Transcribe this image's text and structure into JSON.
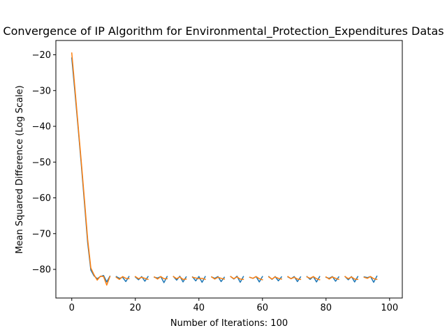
{
  "chart_data": {
    "type": "line",
    "title": "Convergence of IP Algorithm for Environmental_Protection_Expenditures Datas",
    "xlabel": "Number of Iterations: 100",
    "ylabel": "Mean Squared Difference (Log Scale)",
    "xlim": [
      -5,
      104
    ],
    "ylim": [
      -88,
      -16
    ],
    "xticks": [
      0,
      20,
      40,
      60,
      80,
      100
    ],
    "yticks": [
      -20,
      -30,
      -40,
      -50,
      -60,
      -70,
      -80
    ],
    "grid": false,
    "series": [
      {
        "color": "#1f77b4",
        "values": [
          -20.9,
          -30.5,
          -40.4,
          -50.7,
          -61.5,
          -72.5,
          -80.2,
          -81.8,
          -82.6,
          -82.0,
          -81.7,
          -83.5,
          -81.9,
          null,
          -82.0,
          -82.5,
          -82.2,
          -83.4,
          -82.0,
          null,
          -82.1,
          -82.9,
          -82.0,
          -83.3,
          -82.0,
          null,
          -82.2,
          -82.4,
          -82.0,
          -83.7,
          -82.0,
          null,
          -82.0,
          -83.0,
          -81.9,
          -83.5,
          -82.1,
          null,
          -82.1,
          -83.2,
          -82.0,
          -83.6,
          -82.0,
          null,
          -82.1,
          -82.5,
          -82.0,
          -83.4,
          -82.2,
          null,
          -82.0,
          -82.7,
          -81.9,
          -83.6,
          -82.0,
          null,
          -82.2,
          -82.5,
          -82.0,
          -83.5,
          -82.0,
          null,
          -82.0,
          -82.8,
          -82.0,
          -83.2,
          -82.1,
          null,
          -82.1,
          -82.6,
          -82.0,
          -83.4,
          -82.1,
          null,
          -82.0,
          -82.8,
          -82.0,
          -83.5,
          -82.0,
          null,
          -82.2,
          -82.5,
          -82.0,
          -83.3,
          -82.1,
          null,
          -82.0,
          -82.9,
          -82.0,
          -83.5,
          -82.0,
          null,
          -82.1,
          -82.3,
          -82.0,
          -83.6,
          -81.9
        ]
      },
      {
        "color": "#ff7f0e",
        "values": [
          -19.5,
          -29.5,
          -39.8,
          -50.0,
          -60.6,
          -71.6,
          -79.6,
          -81.5,
          -83.0,
          -81.9,
          -82.0,
          -84.4,
          -82.0,
          null,
          -82.2,
          -82.8,
          -82.0,
          -82.5,
          -82.6,
          null,
          -82.0,
          -82.6,
          -82.2,
          -82.5,
          -82.8,
          null,
          -82.1,
          -82.7,
          -82.0,
          -82.6,
          -82.6,
          null,
          -82.0,
          -82.6,
          -82.1,
          -82.8,
          -82.7,
          null,
          -82.2,
          -82.4,
          -82.6,
          -82.5,
          -82.8,
          null,
          -82.1,
          -82.7,
          -82.2,
          -82.5,
          -82.7,
          null,
          -82.0,
          -82.6,
          -82.1,
          -82.7,
          -82.8,
          null,
          -82.2,
          -82.5,
          -82.0,
          -82.6,
          -82.9,
          null,
          -82.1,
          -82.7,
          -82.1,
          -82.5,
          -82.7,
          null,
          -82.0,
          -82.6,
          -82.2,
          -82.7,
          -82.8,
          null,
          -82.1,
          -82.5,
          -82.0,
          -82.6,
          -82.9,
          null,
          -82.1,
          -82.7,
          -82.1,
          -82.5,
          -82.8,
          null,
          -82.0,
          -82.6,
          -82.1,
          -82.7,
          -82.8,
          null,
          -82.2,
          -82.5,
          -82.0,
          -82.6,
          -82.8
        ]
      }
    ]
  }
}
